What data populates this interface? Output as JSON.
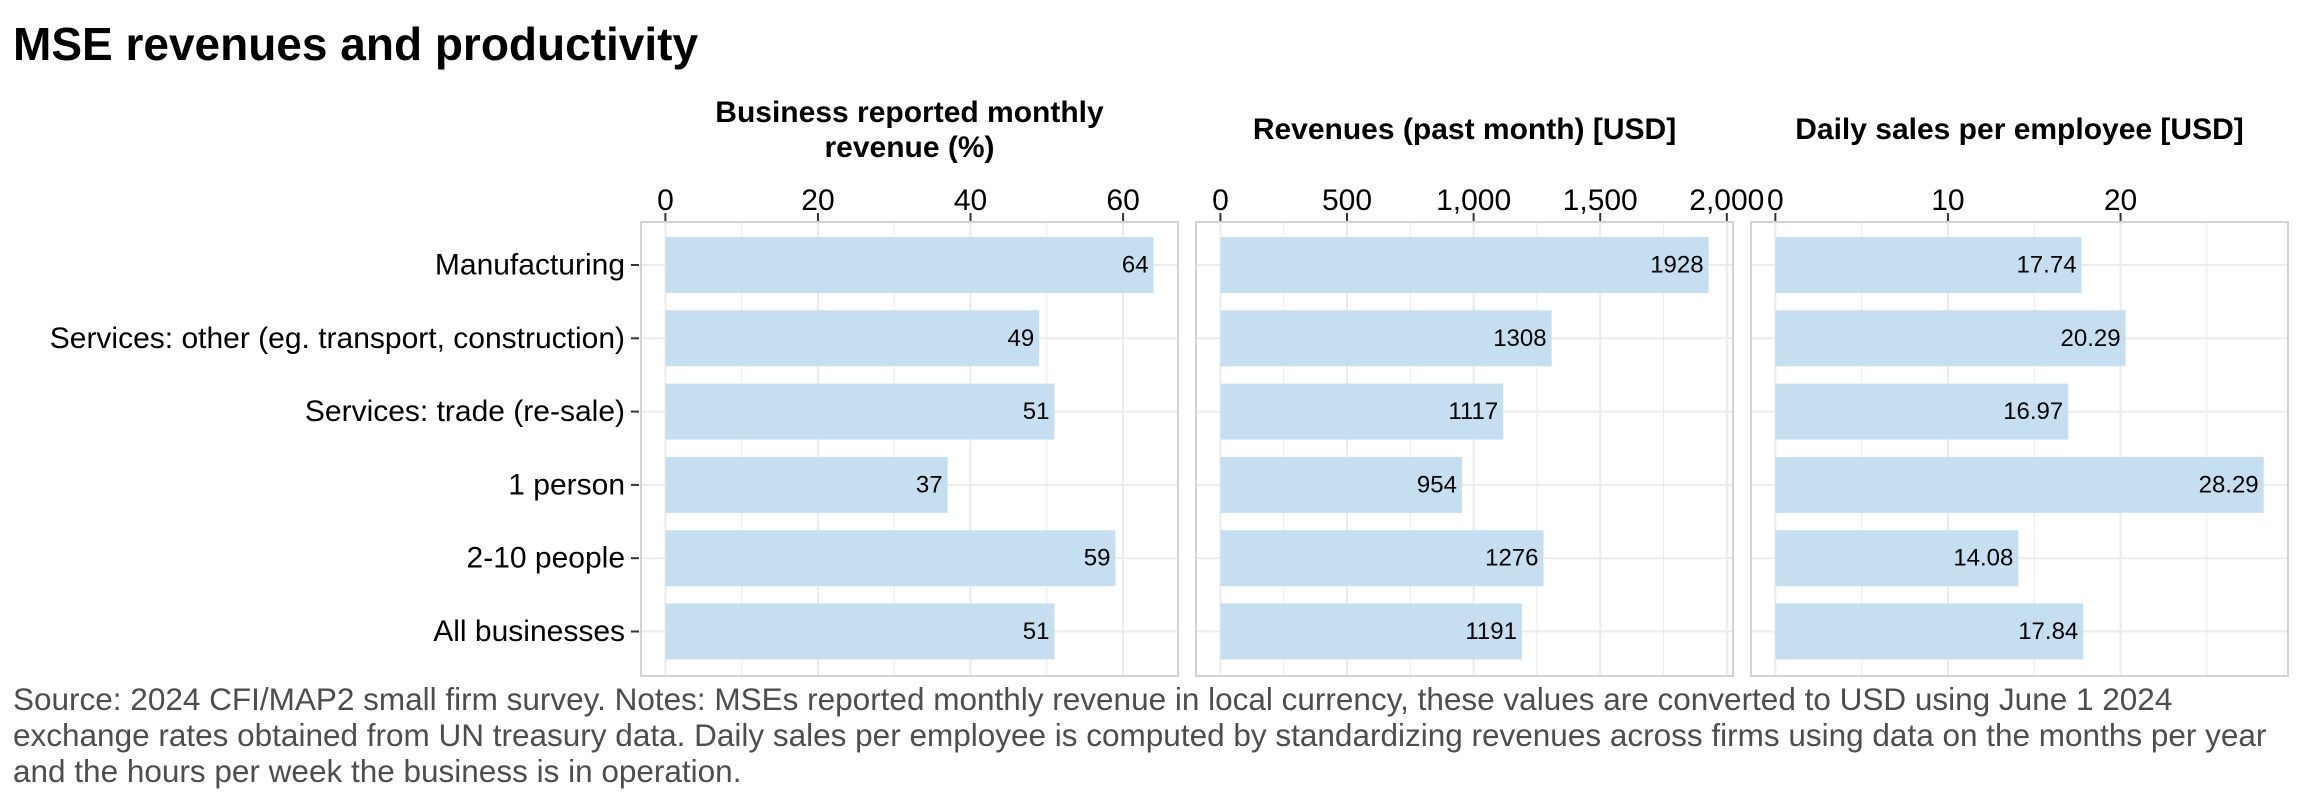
{
  "title": "MSE revenues and productivity",
  "caption": "Source: 2024 CFI/MAP2 small firm survey. Notes: MSEs reported monthly revenue in local currency, these values are converted to USD using June 1 2024 exchange rates obtained from UN treasury data. Daily sales per employee is computed by standardizing revenues across firms using data on the months per year and the hours per week the business is in operation.",
  "colors": {
    "bar": "#c6dff0",
    "grid": "#ebebeb",
    "panel_border": "#d3d3d3",
    "axis_tick": "#333333"
  },
  "chart_data": [
    {
      "type": "bar",
      "orientation": "horizontal",
      "title": "Business reported monthly revenue (%)",
      "title_lines": [
        "Business reported monthly",
        "revenue (%)"
      ],
      "categories": [
        "Manufacturing",
        "Services: other (eg. transport, construction)",
        "Services: trade (re-sale)",
        "1 person",
        "2-10 people",
        "All businesses"
      ],
      "values": [
        64,
        49,
        51,
        37,
        59,
        51
      ],
      "value_labels": [
        "64",
        "49",
        "51",
        "37",
        "59",
        "51"
      ],
      "xlim": [
        -3.2,
        67.2
      ],
      "ticks": [
        0,
        20,
        40,
        60
      ],
      "tick_labels": [
        "0",
        "20",
        "40",
        "60"
      ],
      "axis_position": "top",
      "grid": true
    },
    {
      "type": "bar",
      "orientation": "horizontal",
      "title": "Revenues (past month) [USD]",
      "title_lines": [
        "Revenues (past month) [USD]"
      ],
      "categories": [
        "Manufacturing",
        "Services: other (eg. transport, construction)",
        "Services: trade (re-sale)",
        "1 person",
        "2-10 people",
        "All businesses"
      ],
      "values": [
        1928,
        1308,
        1117,
        954,
        1276,
        1191
      ],
      "value_labels": [
        "1928",
        "1308",
        "1117",
        "954",
        "1276",
        "1191"
      ],
      "xlim": [
        -96.4,
        2024.4
      ],
      "ticks": [
        0,
        500,
        1000,
        1500,
        2000
      ],
      "tick_labels": [
        "0",
        "500",
        "1,000",
        "1,500",
        "2,000"
      ],
      "axis_position": "top",
      "grid": true
    },
    {
      "type": "bar",
      "orientation": "horizontal",
      "title": "Daily sales per employee [USD]",
      "title_lines": [
        "Daily sales per employee [USD]"
      ],
      "categories": [
        "Manufacturing",
        "Services: other (eg. transport, construction)",
        "Services: trade (re-sale)",
        "1 person",
        "2-10 people",
        "All businesses"
      ],
      "values": [
        17.74,
        20.29,
        16.97,
        28.29,
        14.08,
        17.84
      ],
      "value_labels": [
        "17.74",
        "20.29",
        "16.97",
        "28.29",
        "14.08",
        "17.84"
      ],
      "xlim": [
        -1.41,
        29.7
      ],
      "ticks": [
        0,
        10,
        20
      ],
      "tick_labels": [
        "0",
        "10",
        "20"
      ],
      "axis_position": "top",
      "grid": true
    }
  ]
}
